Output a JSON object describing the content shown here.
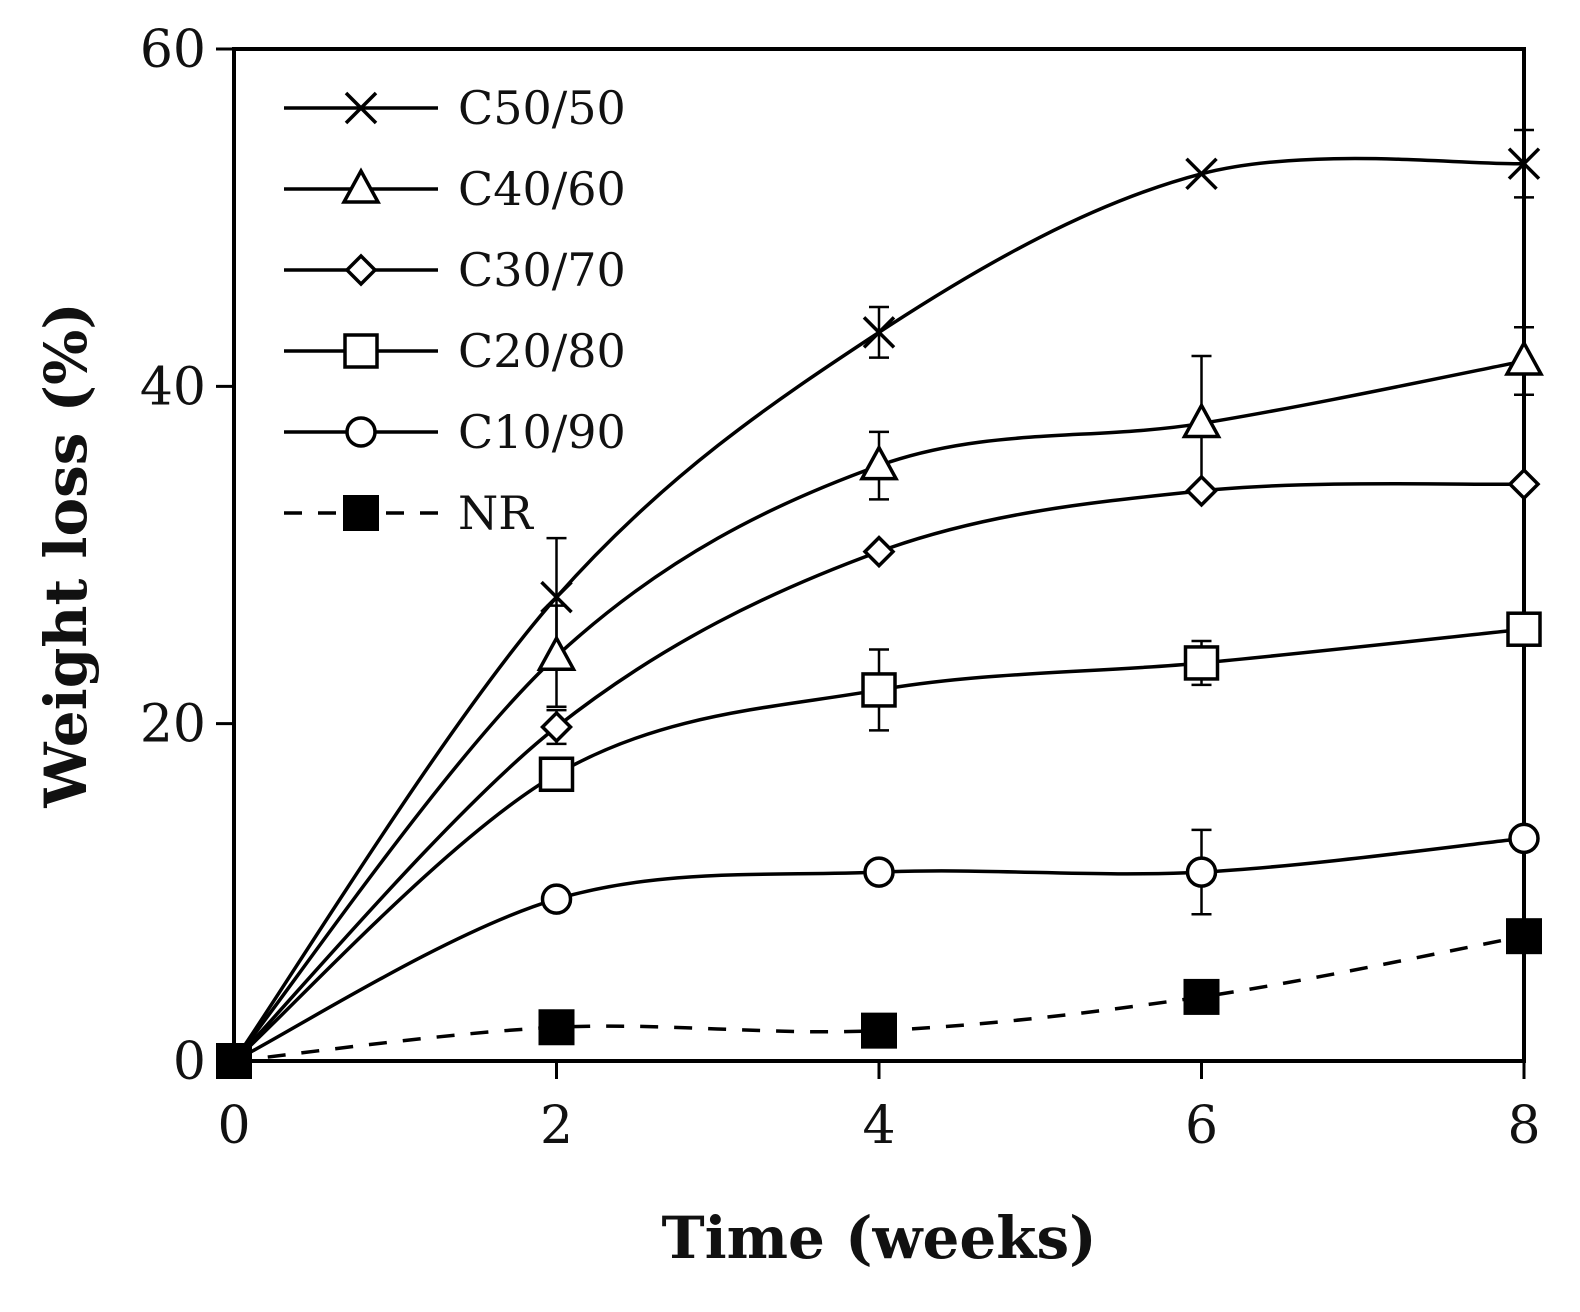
{
  "chart_data": {
    "type": "line",
    "title": "",
    "xlabel": "Time (weeks)",
    "ylabel": "Weight loss (%)",
    "xlim": [
      0,
      8
    ],
    "ylim": [
      0,
      60
    ],
    "xticks": [
      "0",
      "2",
      "4",
      "6",
      "8"
    ],
    "yticks": [
      "0",
      "20",
      "40",
      "60"
    ],
    "grid": false,
    "legend_position": "top-left",
    "x": [
      0,
      2,
      4,
      6,
      8
    ],
    "series": [
      {
        "name": "C50/50",
        "marker": "x",
        "dash": "solid",
        "values": [
          0,
          27.5,
          43.2,
          52.6,
          53.2
        ],
        "errors": [
          0,
          3.5,
          1.5,
          0,
          2.0
        ]
      },
      {
        "name": "C40/60",
        "marker": "triangle",
        "dash": "solid",
        "values": [
          0,
          24.0,
          35.3,
          37.8,
          41.5
        ],
        "errors": [
          0,
          3.0,
          2.0,
          4.0,
          2.0
        ]
      },
      {
        "name": "C30/70",
        "marker": "diamond",
        "dash": "solid",
        "values": [
          0,
          19.8,
          30.2,
          33.8,
          34.2
        ],
        "errors": [
          0,
          1.0,
          0,
          0,
          0
        ]
      },
      {
        "name": "C20/80",
        "marker": "square",
        "dash": "solid",
        "values": [
          0,
          17.0,
          22.0,
          23.6,
          25.6
        ],
        "errors": [
          0,
          0,
          2.4,
          1.3,
          0
        ]
      },
      {
        "name": "C10/90",
        "marker": "circle",
        "dash": "solid",
        "values": [
          0,
          9.6,
          11.2,
          11.2,
          13.2
        ],
        "errors": [
          0,
          0,
          0,
          2.5,
          0
        ]
      },
      {
        "name": "NR",
        "marker": "filled-square",
        "dash": "dashed",
        "values": [
          0,
          2.0,
          1.8,
          3.8,
          7.4
        ],
        "errors": [
          0,
          0,
          0,
          0,
          0.8
        ]
      }
    ]
  }
}
